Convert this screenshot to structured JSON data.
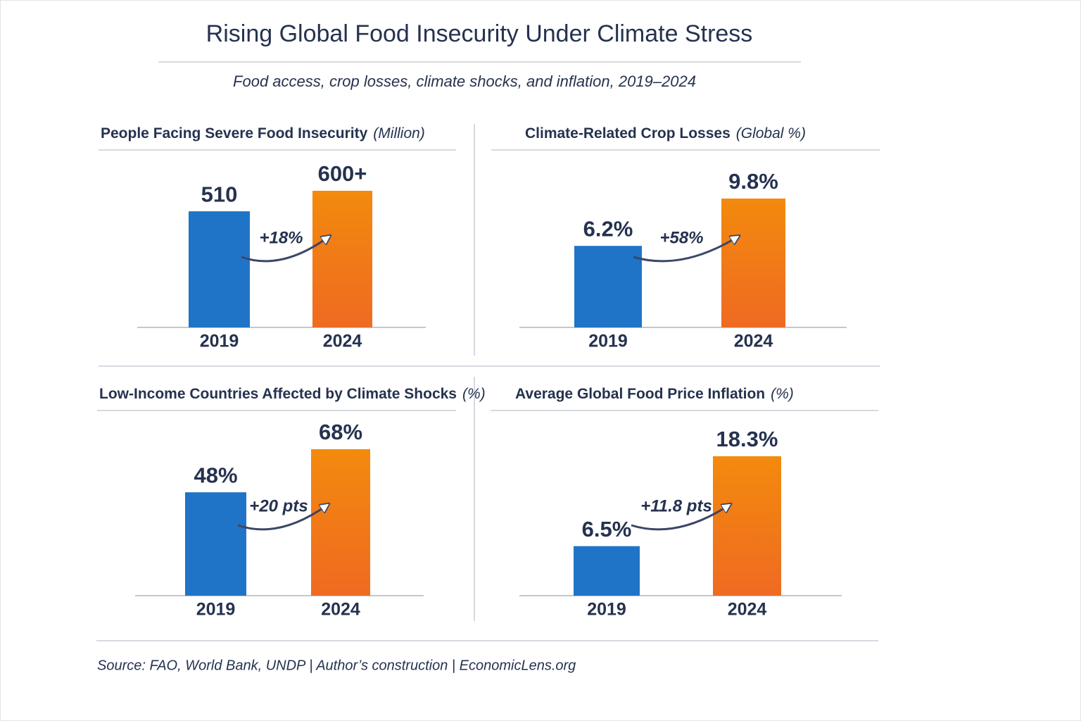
{
  "title": "Rising Global Food Insecurity Under Climate Stress",
  "subtitle": "Food access, crop losses, climate shocks, and inflation, 2019–2024",
  "source": "Source: FAO, World Bank, UNDP | Author’s construction | EconomicLens.org",
  "chart_data": [
    {
      "type": "bar",
      "title": "People Facing Severe Food Insecurity",
      "title_note": "(Million)",
      "categories": [
        "2019",
        "2024"
      ],
      "values": [
        510,
        600
      ],
      "value_labels": [
        "510",
        "600+"
      ],
      "colors": [
        "#1f74c7",
        "#f38a0d"
      ],
      "annotation": "+18%"
    },
    {
      "type": "bar",
      "title": "Climate-Related Crop Losses",
      "title_note": "(Global %)",
      "categories": [
        "2019",
        "2024"
      ],
      "values": [
        6.2,
        9.8
      ],
      "value_labels": [
        "6.2%",
        "9.8%"
      ],
      "colors": [
        "#1f74c7",
        "#f38a0d"
      ],
      "annotation": "+58%"
    },
    {
      "type": "bar",
      "title": "Low-Income Countries Affected by Climate Shocks",
      "title_note": "(%)",
      "categories": [
        "2019",
        "2024"
      ],
      "values": [
        48,
        68
      ],
      "value_labels": [
        "48%",
        "68%"
      ],
      "colors": [
        "#1f74c7",
        "#f38a0d"
      ],
      "annotation": "+20 pts"
    },
    {
      "type": "bar",
      "title": "Average Global Food Price Inflation",
      "title_note": "(%)",
      "categories": [
        "2019",
        "2024"
      ],
      "values": [
        6.5,
        18.3
      ],
      "value_labels": [
        "6.5%",
        "18.3%"
      ],
      "colors": [
        "#1f74c7",
        "#f38a0d"
      ],
      "annotation": "+11.8 pts"
    }
  ]
}
